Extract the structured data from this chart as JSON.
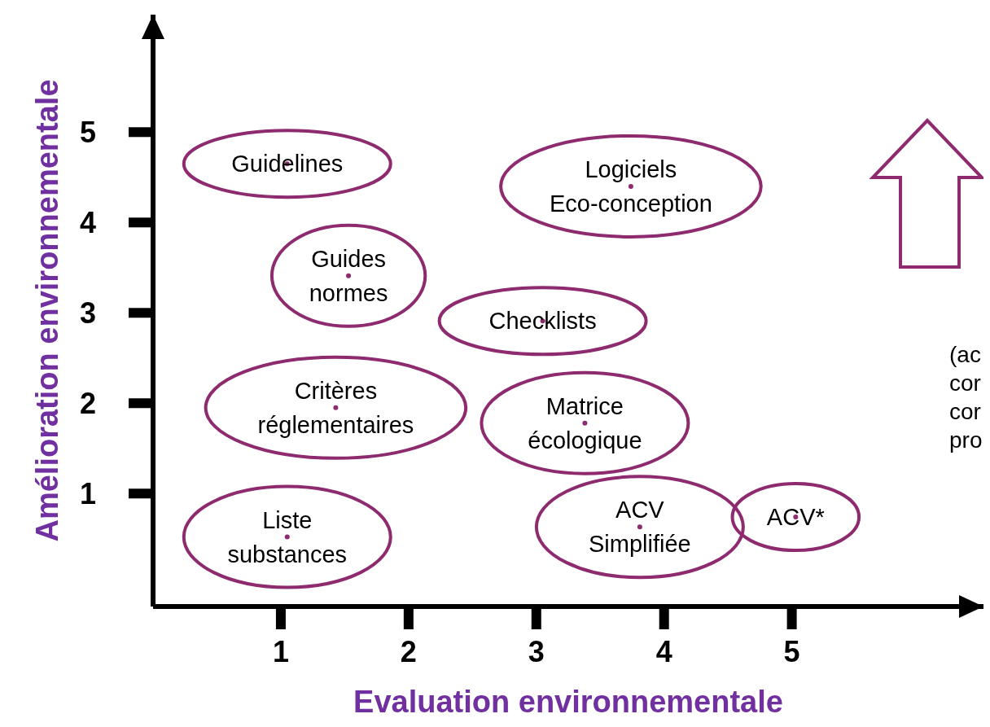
{
  "chart_data": {
    "type": "scatter",
    "xlabel": "Evaluation environnementale",
    "ylabel": "Amélioration environnementale",
    "xlim": [
      0,
      6.5
    ],
    "ylim": [
      -0.25,
      6.3
    ],
    "xticks": [
      1,
      2,
      3,
      4,
      5
    ],
    "yticks": [
      1,
      2,
      3,
      4,
      5
    ],
    "series": [
      {
        "name": "Guidelines",
        "color": "#8e2a6e",
        "x": [
          1.05
        ],
        "values": [
          4.65
        ]
      },
      {
        "name": "Logiciels\nEco-conception",
        "color": "#8e2a6e",
        "x": [
          3.74
        ],
        "values": [
          4.4
        ]
      },
      {
        "name": "Guides\nnormes",
        "color": "#8e2a6e",
        "x": [
          1.53
        ],
        "values": [
          3.41
        ]
      },
      {
        "name": "Checklists",
        "color": "#8e2a6e",
        "x": [
          3.05
        ],
        "values": [
          2.91
        ]
      },
      {
        "name": "Critères\nréglementaires",
        "color": "#8e2a6e",
        "x": [
          1.43
        ],
        "values": [
          1.95
        ]
      },
      {
        "name": "Matrice\nécologique",
        "color": "#8e2a6e",
        "x": [
          3.38
        ],
        "values": [
          1.78
        ]
      },
      {
        "name": "Liste\nsubstances",
        "color": "#8e2a6e",
        "x": [
          1.05
        ],
        "values": [
          0.52
        ]
      },
      {
        "name": "ACV\nSimplifiée",
        "color": "#8e2a6e",
        "x": [
          3.81
        ],
        "values": [
          0.63
        ]
      },
      {
        "name": "ACV*",
        "color": "#8e2a6e",
        "x": [
          5.03
        ],
        "values": [
          0.74
        ]
      }
    ],
    "annotations": [
      "(ac\ncor\ncor\npro"
    ]
  }
}
